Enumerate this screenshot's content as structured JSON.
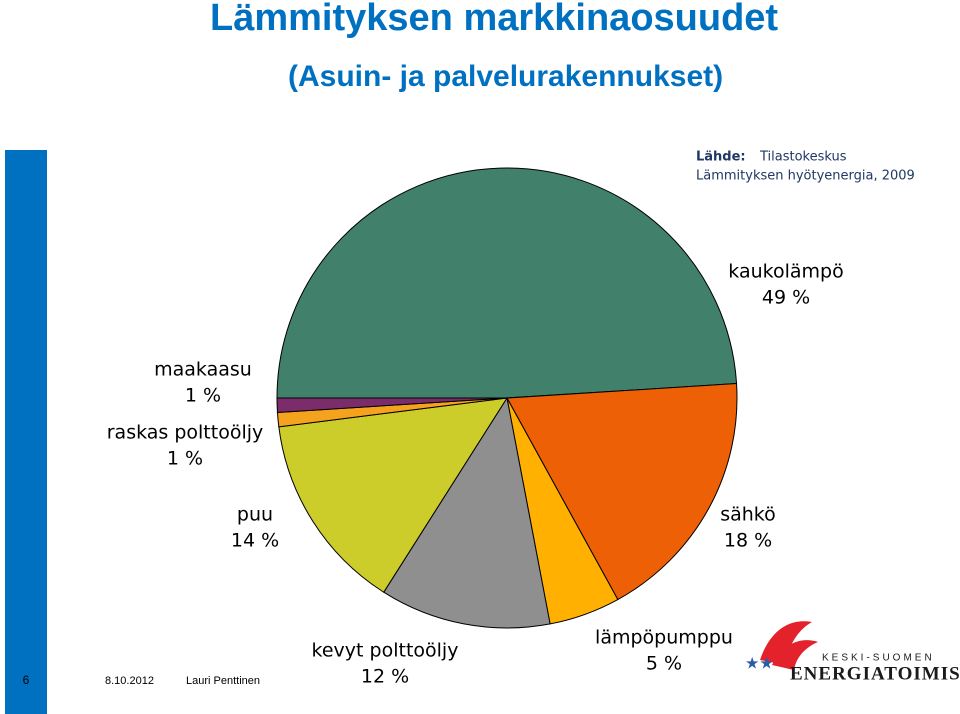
{
  "chart_data": {
    "type": "pie",
    "title": "Lämmityksen markkinaosuudet",
    "subtitle": "(Asuin- ja palvelurakennukset)",
    "categories": [
      "kaukolämpö",
      "sähkö",
      "lämpöpumppu",
      "kevyt polttoöljy",
      "puu",
      "raskas polttoöljy",
      "maakaasu"
    ],
    "values": [
      49,
      18,
      5,
      12,
      14,
      1,
      1
    ],
    "value_labels": [
      "49 %",
      "18 %",
      "5 %",
      "12 %",
      "14 %",
      "1 %",
      "1 %"
    ],
    "colors": [
      "#41806b",
      "#ee6005",
      "#ffb000",
      "#8f8f8f",
      "#cccc2a",
      "#f5a31e",
      "#7b2d6b"
    ]
  },
  "source": {
    "label": "Lähde:",
    "text": "Tilastokeskus",
    "note": "Lämmityksen hyötyenergia, 2009"
  },
  "footer": {
    "page": "6",
    "date": "8.10.2012",
    "author": "Lauri Penttinen"
  },
  "logo": {
    "line1": "KESKI-SUOMEN",
    "line2": "ENERGIATOIMISTO"
  }
}
